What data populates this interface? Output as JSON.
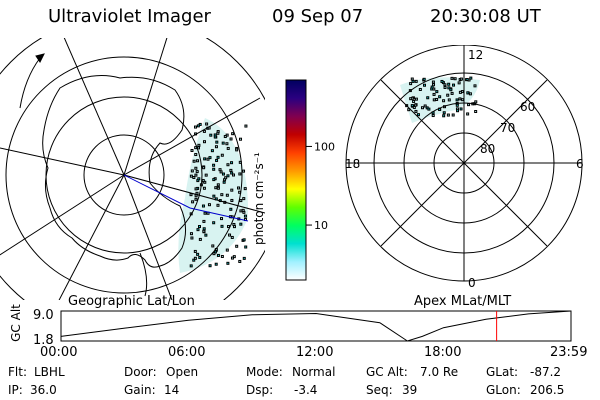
{
  "header": {
    "instrument": "Ultraviolet Imager",
    "date": "09 Sep 07",
    "time": "20:30:08 UT"
  },
  "panels": {
    "left_label": "Geographic Lat/Lon",
    "right_label": "Apex MLat/MLT"
  },
  "colorbar": {
    "unit_label": "photon cm⁻²s⁻¹",
    "scale": "log",
    "ticks": [
      {
        "value": 10,
        "label": "10"
      },
      {
        "value": 100,
        "label": "100"
      }
    ],
    "colors": [
      "#000060",
      "#2a0080",
      "#800050",
      "#c00000",
      "#ff4000",
      "#ff9900",
      "#ffff00",
      "#60ff00",
      "#00ff60",
      "#00e0d0",
      "#a0f0ff",
      "#ffffff"
    ]
  },
  "polar_plot": {
    "mlt_labels": {
      "top": "12",
      "bottom": "0",
      "left": "18",
      "right": "6"
    },
    "mlat_labels": [
      "80",
      "70",
      "60"
    ],
    "emission_color": "#20d8d8"
  },
  "chart_data": {
    "type": "line",
    "title": "",
    "ylabel": "GC Alt",
    "yticks": [
      "9.0",
      "1.8"
    ],
    "ylim": [
      1.8,
      9.0
    ],
    "xlim": [
      "00:00",
      "23:59"
    ],
    "x_tick_labels": [
      "00:00",
      "06:00",
      "12:00",
      "18:00",
      "23:59"
    ],
    "x_hours": [
      0,
      3,
      6,
      9,
      12,
      15,
      16.3,
      17,
      18,
      20,
      22,
      24
    ],
    "values": [
      2.9,
      4.9,
      6.8,
      8.1,
      8.4,
      6.2,
      1.8,
      2.9,
      5.0,
      7.0,
      8.3,
      9.0
    ],
    "marker_hour": 20.5,
    "marker_color": "#ff0000"
  },
  "status": {
    "flt_label": "Flt:",
    "flt_value": "LBHL",
    "door_label": "Door:",
    "door_value": "Open",
    "mode_label": "Mode:",
    "mode_value": "Normal",
    "gcalt_label": "GC Alt:",
    "gcalt_value": "7.0 Re",
    "glat_label": "GLat:",
    "glat_value": "-87.2",
    "ip_label": "IP:",
    "ip_value": "36.0",
    "gain_label": "Gain:",
    "gain_value": "14",
    "dsp_label": "Dsp:",
    "dsp_value": "-3.4",
    "seq_label": "Seq:",
    "seq_value": "39",
    "glon_label": "GLon:",
    "glon_value": "206.5"
  }
}
